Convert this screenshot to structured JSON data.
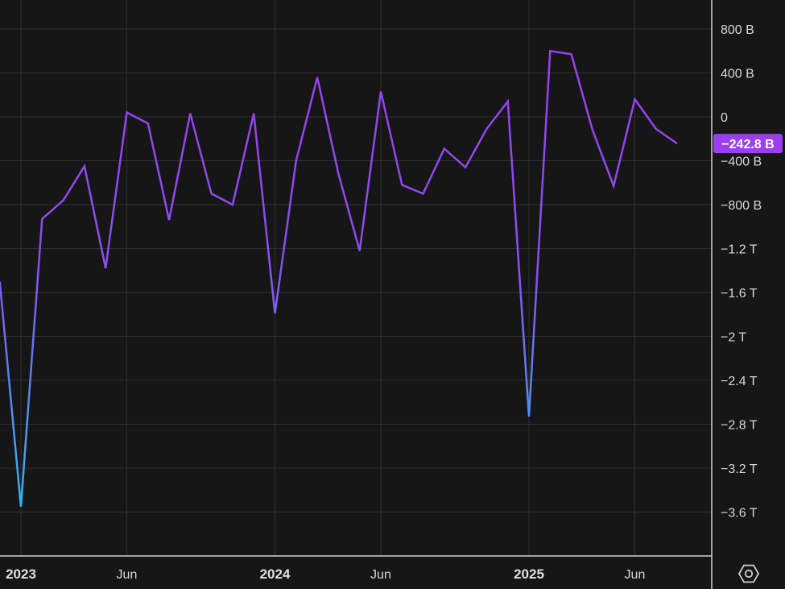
{
  "chart_data": {
    "type": "line",
    "title": "",
    "xlabel": "",
    "ylabel": "",
    "x": [
      "2022-12",
      "2023-01",
      "2023-02",
      "2023-03",
      "2023-04",
      "2023-05",
      "2023-06",
      "2023-07",
      "2023-08",
      "2023-09",
      "2023-10",
      "2023-11",
      "2023-12",
      "2024-01",
      "2024-02",
      "2024-03",
      "2024-04",
      "2024-05",
      "2024-06",
      "2024-07",
      "2024-08",
      "2024-09",
      "2024-10",
      "2024-11",
      "2024-12",
      "2025-01",
      "2025-02",
      "2025-03",
      "2025-04",
      "2025-05",
      "2025-06",
      "2025-07",
      "2025-08"
    ],
    "series": [
      {
        "values": [
          -1500,
          -3550,
          -930,
          -760,
          -450,
          -1380,
          40,
          -60,
          -940,
          30,
          -700,
          -800,
          30,
          -1790,
          -400,
          360,
          -520,
          -1220,
          230,
          -620,
          -700,
          -290,
          -460,
          -110,
          140,
          -2730,
          600,
          570,
          -120,
          -630,
          160,
          -110,
          -242.8
        ],
        "color_start": "#33b5ef",
        "color_end": "#9b3ff0"
      }
    ],
    "y_unit_note": "billions",
    "ylim": [
      -4000,
      1000
    ],
    "y_ticks": [
      {
        "value": 800,
        "label": "800 B"
      },
      {
        "value": 400,
        "label": "400 B"
      },
      {
        "value": 0,
        "label": "0"
      },
      {
        "value": -400,
        "label": "-400 B"
      },
      {
        "value": -800,
        "label": "-800 B"
      },
      {
        "value": -1200,
        "label": "-1.2 T"
      },
      {
        "value": -1600,
        "label": "-1.6 T"
      },
      {
        "value": -2000,
        "label": "-2 T"
      },
      {
        "value": -2400,
        "label": "-2.4 T"
      },
      {
        "value": -2800,
        "label": "-2.8 T"
      },
      {
        "value": -3200,
        "label": "-3.2 T"
      },
      {
        "value": -3600,
        "label": "-3.6 T"
      }
    ],
    "x_ticks": [
      {
        "date": "2023-01",
        "label": "2023",
        "bold": true
      },
      {
        "date": "2023-06",
        "label": "Jun",
        "bold": false
      },
      {
        "date": "2024-01",
        "label": "2024",
        "bold": true
      },
      {
        "date": "2024-06",
        "label": "Jun",
        "bold": false
      },
      {
        "date": "2025-01",
        "label": "2025",
        "bold": true
      },
      {
        "date": "2025-06",
        "label": "Jun",
        "bold": false
      }
    ],
    "last_value_label": "−242.8 B",
    "last_value_color": "#9b3ff0",
    "grid": true
  },
  "icons": {
    "settings": "settings-icon"
  },
  "colors": {
    "background": "#161616",
    "grid": "#2f2f2f",
    "text": "#d8d8d8"
  }
}
